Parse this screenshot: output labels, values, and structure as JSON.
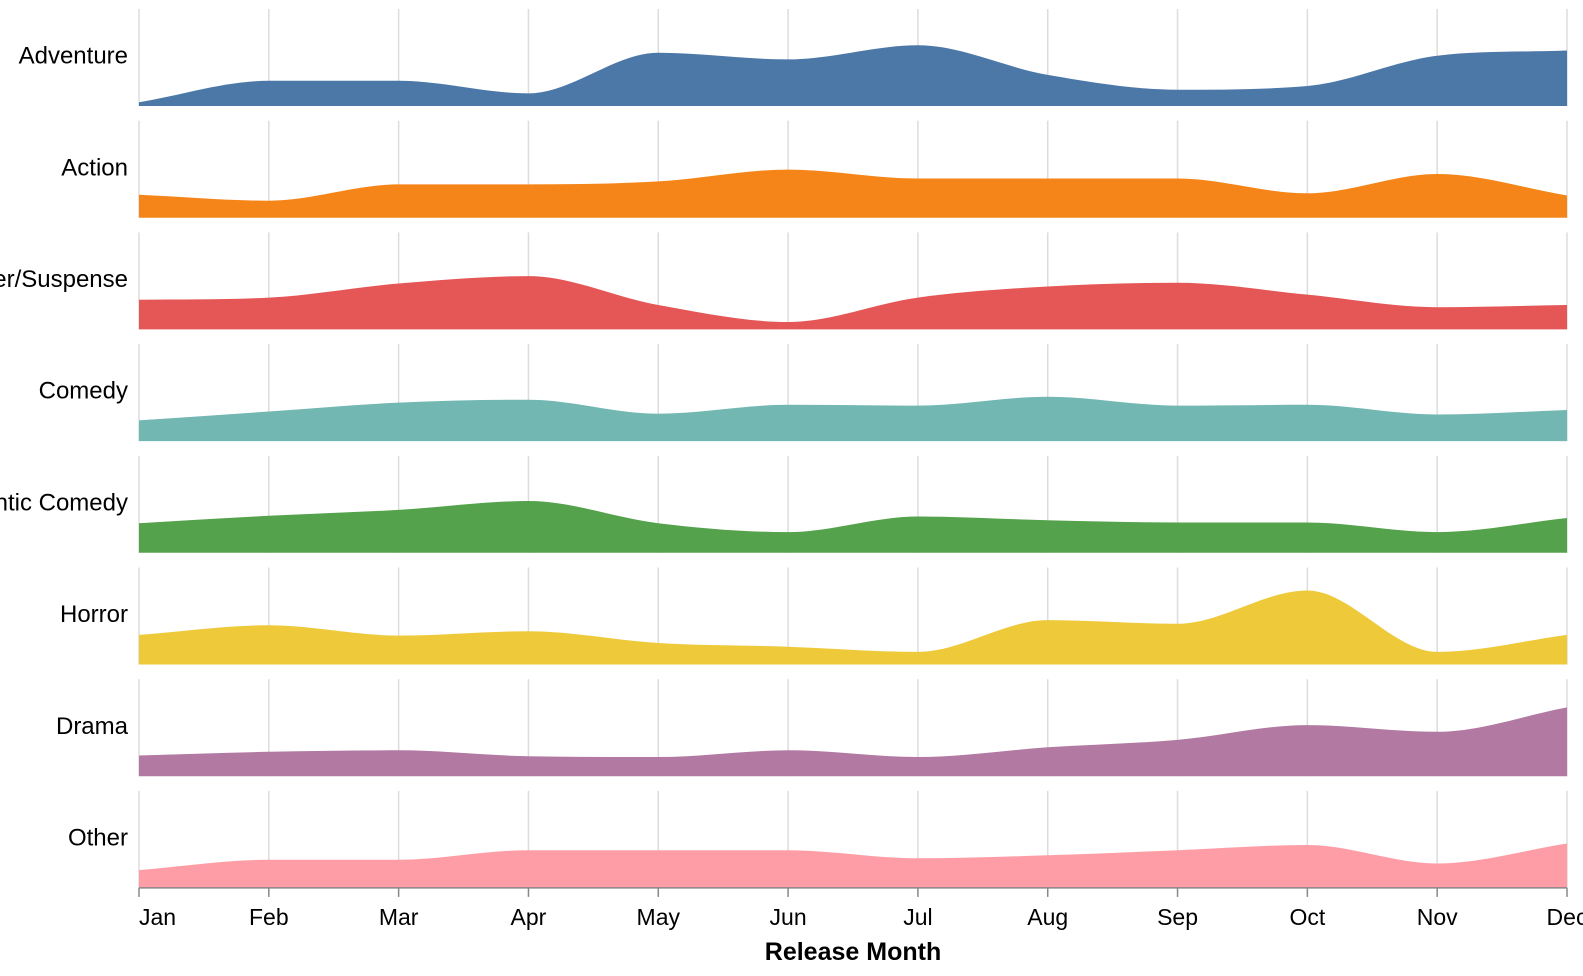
{
  "chart_data": {
    "type": "area",
    "xlabel": "Release Month",
    "x": [
      "Jan",
      "Feb",
      "Mar",
      "Apr",
      "May",
      "Jun",
      "Jul",
      "Aug",
      "Sep",
      "Oct",
      "Nov",
      "Dec"
    ],
    "series": [
      {
        "name": "Adventure",
        "color": "#4c78a8",
        "values": [
          0.05,
          0.34,
          0.34,
          0.17,
          0.72,
          0.63,
          0.82,
          0.42,
          0.22,
          0.27,
          0.68,
          0.75
        ]
      },
      {
        "name": "Action",
        "color": "#f58518",
        "values": [
          0.31,
          0.23,
          0.45,
          0.45,
          0.49,
          0.65,
          0.53,
          0.53,
          0.53,
          0.33,
          0.59,
          0.3
        ]
      },
      {
        "name": "Thriller/Suspense",
        "color": "#e45756",
        "values": [
          0.4,
          0.43,
          0.62,
          0.72,
          0.33,
          0.1,
          0.43,
          0.58,
          0.63,
          0.47,
          0.3,
          0.33
        ]
      },
      {
        "name": "Comedy",
        "color": "#72b7b2",
        "values": [
          0.28,
          0.4,
          0.52,
          0.56,
          0.37,
          0.49,
          0.48,
          0.6,
          0.48,
          0.49,
          0.36,
          0.42
        ]
      },
      {
        "name": "Romantic Comedy",
        "color": "#54a24b",
        "values": [
          0.4,
          0.5,
          0.58,
          0.7,
          0.4,
          0.28,
          0.49,
          0.44,
          0.41,
          0.41,
          0.28,
          0.47
        ]
      },
      {
        "name": "Horror",
        "color": "#eeca3b",
        "values": [
          0.4,
          0.53,
          0.39,
          0.45,
          0.29,
          0.24,
          0.17,
          0.6,
          0.55,
          1.0,
          0.17,
          0.4
        ]
      },
      {
        "name": "Drama",
        "color": "#b279a2",
        "values": [
          0.28,
          0.33,
          0.35,
          0.27,
          0.26,
          0.35,
          0.26,
          0.39,
          0.49,
          0.69,
          0.6,
          0.93
        ]
      },
      {
        "name": "Other",
        "color": "#ff9da6",
        "values": [
          0.24,
          0.38,
          0.38,
          0.51,
          0.51,
          0.51,
          0.4,
          0.44,
          0.51,
          0.58,
          0.33,
          0.6
        ]
      }
    ],
    "grid": true,
    "legend": "none"
  }
}
